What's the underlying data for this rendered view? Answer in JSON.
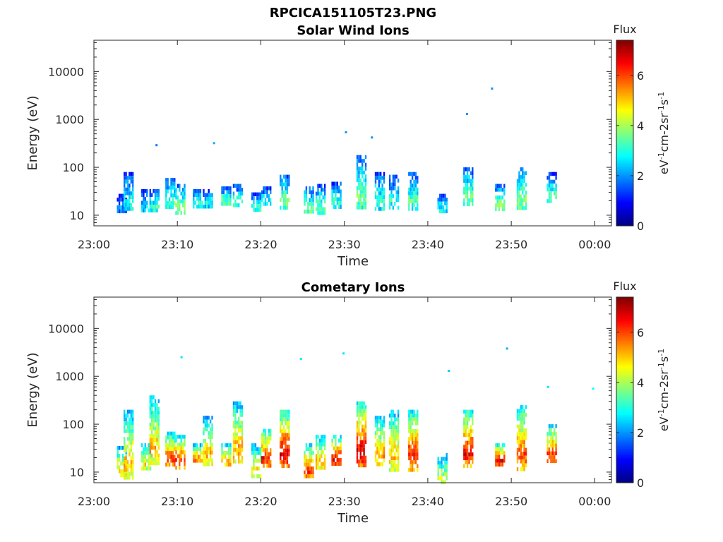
{
  "figure_title": "RPCICA151105T23.PNG",
  "chart_data": [
    {
      "type": "heatmap",
      "title": "Solar Wind Ions",
      "xlabel": "Time",
      "ylabel": "Energy (eV)",
      "x_ticks": [
        "23:00",
        "23:10",
        "23:20",
        "23:30",
        "23:40",
        "23:50",
        "00:00"
      ],
      "y_ticks": [
        "10",
        "100",
        "1000",
        "10000"
      ],
      "y_scale": "log",
      "ylim": [
        6,
        45000
      ],
      "xlim_minutes": [
        0,
        62
      ],
      "colorbar": {
        "title": "Flux",
        "label": "eV-1cm-2sr-1s-1",
        "ticks": [
          "0",
          "2",
          "4",
          "6"
        ],
        "range": [
          0,
          7.4
        ]
      },
      "bursts": [
        {
          "t": 3.3,
          "e_lo": 12,
          "e_hi": 28,
          "flux": 2.0
        },
        {
          "t": 4.1,
          "e_lo": 14,
          "e_hi": 80,
          "flux": 3.0
        },
        {
          "t": 6.2,
          "e_lo": 12,
          "e_hi": 35,
          "flux": 2.6
        },
        {
          "t": 7.2,
          "e_lo": 12,
          "e_hi": 35,
          "flux": 3.2
        },
        {
          "t": 9.1,
          "e_lo": 14,
          "e_hi": 60,
          "flux": 3.4
        },
        {
          "t": 10.3,
          "e_lo": 12,
          "e_hi": 45,
          "flux": 3.8
        },
        {
          "t": 12.4,
          "e_lo": 16,
          "e_hi": 35,
          "flux": 3.2
        },
        {
          "t": 13.6,
          "e_lo": 16,
          "e_hi": 35,
          "flux": 3.0
        },
        {
          "t": 15.8,
          "e_lo": 18,
          "e_hi": 40,
          "flux": 3.6
        },
        {
          "t": 17.2,
          "e_lo": 16,
          "e_hi": 45,
          "flux": 3.4
        },
        {
          "t": 19.4,
          "e_lo": 12,
          "e_hi": 30,
          "flux": 3.2
        },
        {
          "t": 20.6,
          "e_lo": 16,
          "e_hi": 40,
          "flux": 3.0
        },
        {
          "t": 22.8,
          "e_lo": 14,
          "e_hi": 70,
          "flux": 3.8
        },
        {
          "t": 25.7,
          "e_lo": 11,
          "e_hi": 40,
          "flux": 3.6
        },
        {
          "t": 27.1,
          "e_lo": 12,
          "e_hi": 45,
          "flux": 3.4
        },
        {
          "t": 29.0,
          "e_lo": 16,
          "e_hi": 50,
          "flux": 3.2
        },
        {
          "t": 32.0,
          "e_lo": 14,
          "e_hi": 180,
          "flux": 3.6
        },
        {
          "t": 34.2,
          "e_lo": 14,
          "e_hi": 80,
          "flux": 3.2
        },
        {
          "t": 35.9,
          "e_lo": 14,
          "e_hi": 70,
          "flux": 3.0
        },
        {
          "t": 38.2,
          "e_lo": 14,
          "e_hi": 80,
          "flux": 3.4
        },
        {
          "t": 41.7,
          "e_lo": 12,
          "e_hi": 28,
          "flux": 2.8
        },
        {
          "t": 44.8,
          "e_lo": 16,
          "e_hi": 100,
          "flux": 3.6
        },
        {
          "t": 48.6,
          "e_lo": 14,
          "e_hi": 45,
          "flux": 3.8
        },
        {
          "t": 51.2,
          "e_lo": 14,
          "e_hi": 100,
          "flux": 3.8
        },
        {
          "t": 54.8,
          "e_lo": 20,
          "e_hi": 80,
          "flux": 3.4
        }
      ],
      "sparse_points": [
        {
          "t": 47.7,
          "e": 4400,
          "flux": 2.0
        },
        {
          "t": 44.7,
          "e": 1300,
          "flux": 2.0
        },
        {
          "t": 30.2,
          "e": 540,
          "flux": 2.0
        },
        {
          "t": 33.3,
          "e": 420,
          "flux": 2.0
        },
        {
          "t": 14.4,
          "e": 320,
          "flux": 2.2
        },
        {
          "t": 7.5,
          "e": 290,
          "flux": 1.8
        }
      ]
    },
    {
      "type": "heatmap",
      "title": "Cometary Ions",
      "xlabel": "Time",
      "ylabel": "Energy (eV)",
      "x_ticks": [
        "23:00",
        "23:10",
        "23:20",
        "23:30",
        "23:40",
        "23:50",
        "00:00"
      ],
      "y_ticks": [
        "10",
        "100",
        "1000",
        "10000"
      ],
      "y_scale": "log",
      "ylim": [
        6,
        45000
      ],
      "xlim_minutes": [
        0,
        62
      ],
      "colorbar": {
        "title": "Flux",
        "label": "eV-1cm-2sr-1s-1",
        "ticks": [
          "0",
          "2",
          "4",
          "6"
        ],
        "range": [
          0,
          7.4
        ]
      },
      "bursts": [
        {
          "t": 3.3,
          "e_lo": 8,
          "e_hi": 35,
          "flux": 5.0
        },
        {
          "t": 4.1,
          "e_lo": 8,
          "e_hi": 200,
          "flux": 5.2
        },
        {
          "t": 6.2,
          "e_lo": 12,
          "e_hi": 40,
          "flux": 4.8
        },
        {
          "t": 7.2,
          "e_lo": 14,
          "e_hi": 400,
          "flux": 5.2
        },
        {
          "t": 9.1,
          "e_lo": 14,
          "e_hi": 70,
          "flux": 6.2
        },
        {
          "t": 10.3,
          "e_lo": 12,
          "e_hi": 60,
          "flux": 6.4
        },
        {
          "t": 12.4,
          "e_lo": 16,
          "e_hi": 40,
          "flux": 5.8
        },
        {
          "t": 13.6,
          "e_lo": 14,
          "e_hi": 150,
          "flux": 5.2
        },
        {
          "t": 15.8,
          "e_lo": 14,
          "e_hi": 40,
          "flux": 5.6
        },
        {
          "t": 17.2,
          "e_lo": 16,
          "e_hi": 300,
          "flux": 5.4
        },
        {
          "t": 19.4,
          "e_lo": 8,
          "e_hi": 40,
          "flux": 5.0
        },
        {
          "t": 20.6,
          "e_lo": 14,
          "e_hi": 80,
          "flux": 6.4
        },
        {
          "t": 22.8,
          "e_lo": 14,
          "e_hi": 200,
          "flux": 6.8
        },
        {
          "t": 25.7,
          "e_lo": 8,
          "e_hi": 40,
          "flux": 6.2
        },
        {
          "t": 27.1,
          "e_lo": 12,
          "e_hi": 60,
          "flux": 5.4
        },
        {
          "t": 29.0,
          "e_lo": 14,
          "e_hi": 60,
          "flux": 6.6
        },
        {
          "t": 32.0,
          "e_lo": 14,
          "e_hi": 300,
          "flux": 6.8
        },
        {
          "t": 34.2,
          "e_lo": 14,
          "e_hi": 150,
          "flux": 5.6
        },
        {
          "t": 35.9,
          "e_lo": 12,
          "e_hi": 200,
          "flux": 5.2
        },
        {
          "t": 38.2,
          "e_lo": 12,
          "e_hi": 200,
          "flux": 6.4
        },
        {
          "t": 41.7,
          "e_lo": 6,
          "e_hi": 25,
          "flux": 4.2
        },
        {
          "t": 44.8,
          "e_lo": 14,
          "e_hi": 200,
          "flux": 6.6
        },
        {
          "t": 48.6,
          "e_lo": 14,
          "e_hi": 40,
          "flux": 6.8
        },
        {
          "t": 51.2,
          "e_lo": 12,
          "e_hi": 250,
          "flux": 6.0
        },
        {
          "t": 54.8,
          "e_lo": 16,
          "e_hi": 100,
          "flux": 6.2
        }
      ],
      "sparse_points": [
        {
          "t": 10.5,
          "e": 2500,
          "flux": 2.6
        },
        {
          "t": 24.8,
          "e": 2300,
          "flux": 2.6
        },
        {
          "t": 29.9,
          "e": 3000,
          "flux": 2.6
        },
        {
          "t": 42.5,
          "e": 1300,
          "flux": 2.4
        },
        {
          "t": 49.5,
          "e": 3800,
          "flux": 2.2
        },
        {
          "t": 54.4,
          "e": 600,
          "flux": 2.6
        },
        {
          "t": 59.8,
          "e": 550,
          "flux": 2.8
        }
      ]
    }
  ]
}
